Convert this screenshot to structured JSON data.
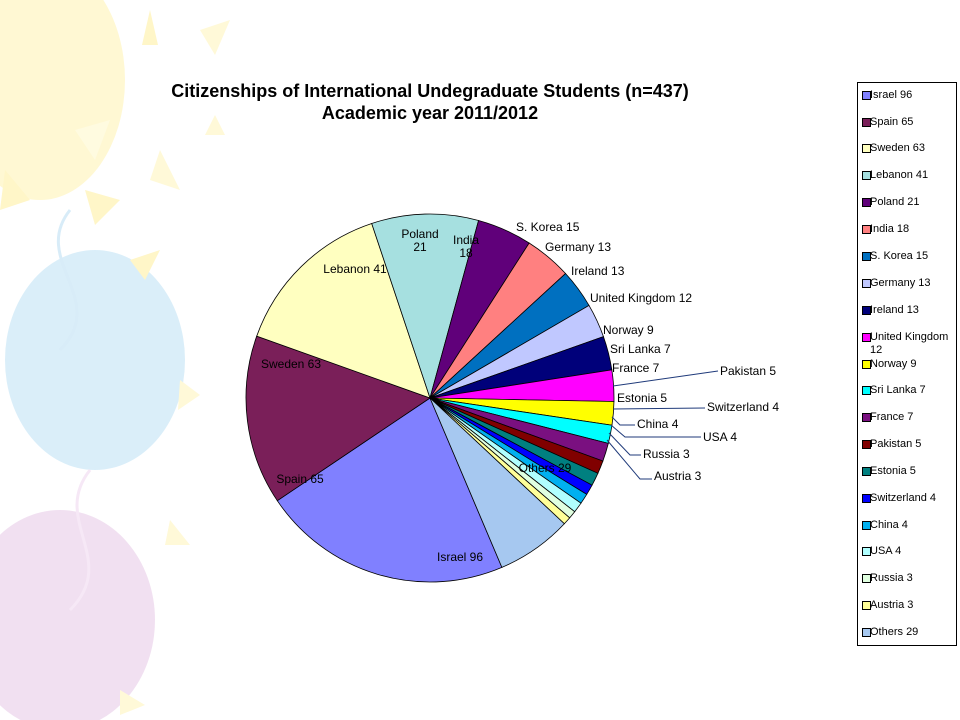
{
  "chart_data": {
    "type": "pie",
    "title": "Citizenships of International Undegraduate Students (n=437)",
    "subtitle": "Academic year 2011/2012",
    "slices": [
      {
        "label": "Israel 96",
        "value": 96,
        "color": "#8080ff"
      },
      {
        "label": "Spain 65",
        "value": 65,
        "color": "#7a1f59"
      },
      {
        "label": "Sweden 63",
        "value": 63,
        "color": "#ffffc0"
      },
      {
        "label": "Lebanon 41",
        "value": 41,
        "color": "#a6e0e0"
      },
      {
        "label": "Poland 21",
        "value": 21,
        "color": "#60007a"
      },
      {
        "label": "India 18",
        "value": 18,
        "color": "#ff8080"
      },
      {
        "label": "S. Korea 15",
        "value": 15,
        "color": "#0070c0"
      },
      {
        "label": "Germany 13",
        "value": 13,
        "color": "#c0c8ff"
      },
      {
        "label": "Ireland 13",
        "value": 13,
        "color": "#00007a"
      },
      {
        "label": "United Kingdom 12",
        "value": 12,
        "color": "#ff00ff"
      },
      {
        "label": "Norway 9",
        "value": 9,
        "color": "#ffff00"
      },
      {
        "label": "Sri Lanka 7",
        "value": 7,
        "color": "#00ffff"
      },
      {
        "label": "France 7",
        "value": 7,
        "color": "#7a1080"
      },
      {
        "label": "Pakistan 5",
        "value": 5,
        "color": "#800000"
      },
      {
        "label": "Estonia 5",
        "value": 5,
        "color": "#008080"
      },
      {
        "label": "Switzerland 4",
        "value": 4,
        "color": "#0000ff"
      },
      {
        "label": "China 4",
        "value": 4,
        "color": "#00b0f0"
      },
      {
        "label": "USA 4",
        "value": 4,
        "color": "#b0ffff"
      },
      {
        "label": "Russia 3",
        "value": 3,
        "color": "#e0ffe0"
      },
      {
        "label": "Austria 3",
        "value": 3,
        "color": "#ffff99"
      },
      {
        "label": "Others 29",
        "value": 29,
        "color": "#a6c8f0"
      }
    ],
    "slice_labels": {
      "poland": [
        "Poland",
        "21"
      ],
      "india": [
        "India",
        "18"
      ]
    },
    "legend": [
      "Israel 96",
      "Spain 65",
      "Sweden 63",
      "Lebanon 41",
      "Poland 21",
      "India  18",
      "S. Korea 15",
      "Germany 13",
      "Ireland 13",
      [
        "United Kingdom",
        "12"
      ],
      "Norway 9",
      "Sri Lanka 7",
      "France 7",
      "Pakistan 5",
      "Estonia 5",
      "Switzerland 4",
      "China 4",
      "USA 4",
      "Russia 3",
      "Austria 3",
      "Others 29"
    ],
    "legend_placement": "right"
  }
}
